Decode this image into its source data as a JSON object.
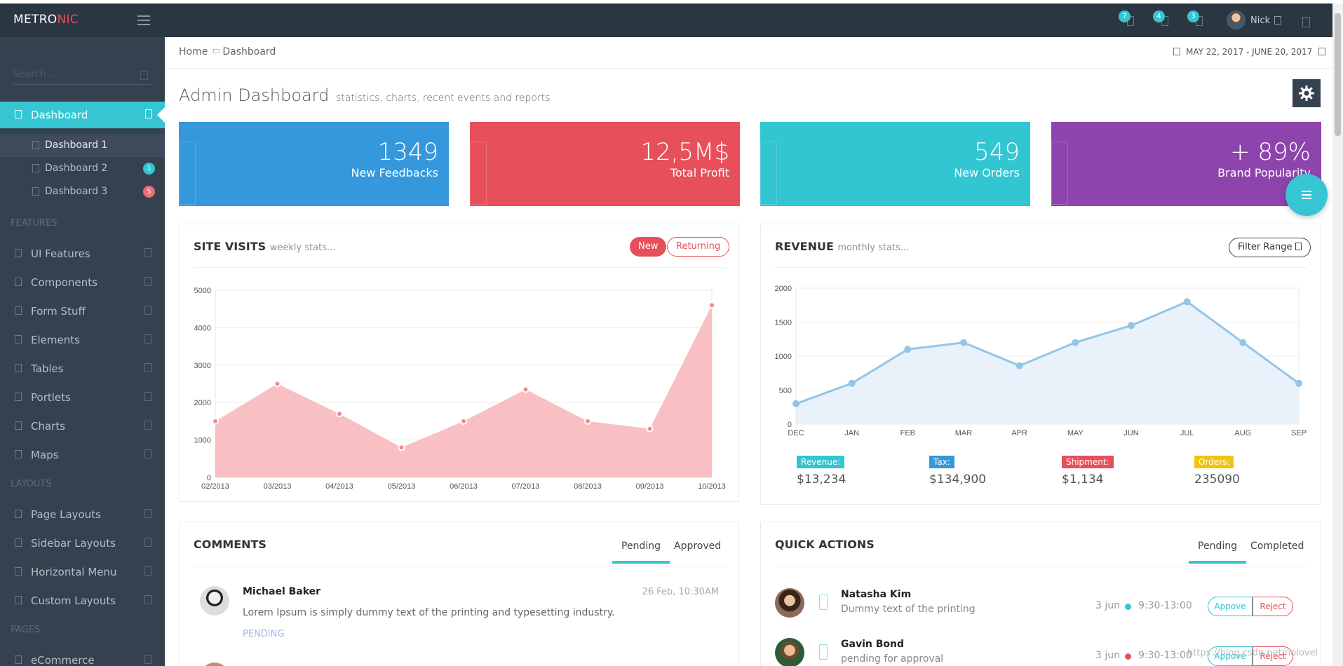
{
  "topbar": {
    "logo_main": "METRO",
    "logo_accent": "NIC",
    "badges": [
      "7",
      "4",
      "3"
    ],
    "user_name": "Nick"
  },
  "sidebar": {
    "search_placeholder": "Search...",
    "active_item": "Dashboard",
    "subitems": [
      {
        "label": "Dashboard 1",
        "badge": ""
      },
      {
        "label": "Dashboard 2",
        "badge": "1",
        "badge_color": "#36c6d3"
      },
      {
        "label": "Dashboard 3",
        "badge": "5",
        "badge_color": "#ed6b75"
      }
    ],
    "sections": {
      "features": "FEATURES",
      "layouts": "LAYOUTS",
      "pages": "PAGES"
    },
    "feature_items": [
      "UI Features",
      "Components",
      "Form Stuff",
      "Elements",
      "Tables",
      "Portlets",
      "Charts",
      "Maps"
    ],
    "layout_items": [
      "Page Layouts",
      "Sidebar Layouts",
      "Horizontal Menu",
      "Custom Layouts"
    ],
    "page_items": [
      "eCommerce"
    ]
  },
  "breadcrumb": {
    "home": "Home",
    "current": "Dashboard"
  },
  "date_range": "MAY 22, 2017 - JUNE 20, 2017",
  "page": {
    "title": "Admin Dashboard",
    "subtitle": "statistics, charts, recent events and reports"
  },
  "stats": [
    {
      "value": "1349",
      "label": "New Feedbacks",
      "color": "#3598dc"
    },
    {
      "value": "12,5M$",
      "label": "Total Profit",
      "color": "#e7505a"
    },
    {
      "value": "549",
      "label": "New Orders",
      "color": "#32c5d2"
    },
    {
      "value": "+ 89%",
      "label": "Brand Popularity",
      "color": "#8e44ad"
    }
  ],
  "site_visits": {
    "title": "SITE VISITS",
    "subtitle": "weekly stats...",
    "btn_new": "New",
    "btn_returning": "Returning"
  },
  "revenue": {
    "title": "REVENUE",
    "subtitle": "monthly stats...",
    "filter_label": "Filter Range",
    "legend": [
      {
        "label": "Revenue:",
        "value": "$13,234",
        "color": "#32c5d2"
      },
      {
        "label": "Tax:",
        "value": "$134,900",
        "color": "#3598dc"
      },
      {
        "label": "Shipment:",
        "value": "$1,134",
        "color": "#e7505a"
      },
      {
        "label": "Orders:",
        "value": "235090",
        "color": "#f1c40f"
      }
    ]
  },
  "comments": {
    "title": "COMMENTS",
    "tabs": [
      "Pending",
      "Approved"
    ],
    "items": [
      {
        "name": "Michael Baker",
        "date": "26 Feb, 10:30AM",
        "text": "Lorem Ipsum is simply dummy text of the printing and typesetting industry.",
        "status": "PENDING"
      }
    ]
  },
  "quick_actions": {
    "title": "QUICK ACTIONS",
    "tabs": [
      "Pending",
      "Completed"
    ],
    "items": [
      {
        "name": "Natasha Kim",
        "desc": "Dummy text of the printing",
        "date": "3 jun",
        "time": "9:30-13:00",
        "dot": "#32c5d2",
        "approve": "Appove",
        "reject": "Reject"
      },
      {
        "name": "Gavin Bond",
        "desc": "pending for approval",
        "date": "3 jun",
        "time": "9:30-13:00",
        "dot": "#e7505a",
        "approve": "Appove",
        "reject": "Reject"
      }
    ]
  },
  "chart_data": [
    {
      "type": "area",
      "x": [
        "02/2013",
        "03/2013",
        "04/2013",
        "05/2013",
        "06/2013",
        "07/2013",
        "08/2013",
        "09/2013",
        "10/2013"
      ],
      "values": [
        1500,
        2500,
        1700,
        800,
        1500,
        2350,
        1500,
        1300,
        4600
      ],
      "ylim": [
        0,
        5000
      ],
      "yticks": [
        0,
        1000,
        2000,
        3000,
        4000,
        5000
      ],
      "color": "#f8c0c2"
    },
    {
      "type": "area",
      "x": [
        "DEC",
        "JAN",
        "FEB",
        "MAR",
        "APR",
        "MAY",
        "JUN",
        "JUL",
        "AUG",
        "SEP"
      ],
      "values": [
        300,
        600,
        1100,
        1200,
        860,
        1200,
        1450,
        1800,
        1200,
        600
      ],
      "ylim": [
        0,
        2000
      ],
      "yticks": [
        0,
        500,
        1000,
        1500,
        2000
      ],
      "color": "#94c5e6"
    }
  ],
  "watermark": "https://blog.csdn.net/nolovel"
}
